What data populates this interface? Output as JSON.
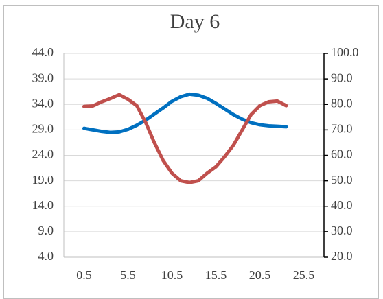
{
  "chart_data": {
    "type": "line",
    "title": "Day 6",
    "x": [
      0.5,
      1.5,
      2.5,
      3.5,
      4.5,
      5.5,
      6.5,
      7.5,
      8.5,
      9.5,
      10.5,
      11.5,
      12.5,
      13.5,
      14.5,
      15.5,
      16.5,
      17.5,
      18.5,
      19.5,
      20.5,
      21.5,
      22.5,
      23.5
    ],
    "series": [
      {
        "color": "#0070c0",
        "values": [
          29.3,
          29.0,
          28.7,
          28.5,
          28.6,
          29.1,
          29.9,
          30.9,
          32.1,
          33.3,
          34.6,
          35.5,
          36.0,
          35.8,
          35.2,
          34.2,
          33.1,
          32.0,
          31.1,
          30.4,
          30.0,
          29.8,
          29.7,
          29.6
        ]
      },
      {
        "color": "#c0504d",
        "axis": "y2",
        "values": [
          79.2,
          79.4,
          81.0,
          82.3,
          83.8,
          82.0,
          79.5,
          73.0,
          65.0,
          58.0,
          53.0,
          50.0,
          49.3,
          50.0,
          53.0,
          55.5,
          59.5,
          64.0,
          70.0,
          76.0,
          79.5,
          81.0,
          81.3,
          79.5
        ]
      }
    ],
    "xlim": [
      -1.8,
      27.8
    ],
    "xticks": [
      0.5,
      5.5,
      10.5,
      15.5,
      20.5,
      25.5
    ],
    "ylim": [
      4,
      44
    ],
    "yticks": [
      {
        "value": 4,
        "label": "4.0"
      },
      {
        "value": 9,
        "label": "9.0"
      },
      {
        "value": 14,
        "label": "14.0"
      },
      {
        "value": 19,
        "label": "19.0"
      },
      {
        "value": 24,
        "label": "24.0"
      },
      {
        "value": 29,
        "label": "29.0"
      },
      {
        "value": 34,
        "label": "34.0"
      },
      {
        "value": 39,
        "label": "39.0"
      },
      {
        "value": 44,
        "label": "44.0"
      }
    ],
    "y2lim": [
      20,
      100
    ],
    "y2ticks": [
      {
        "value": 20,
        "label": "20.0"
      },
      {
        "value": 30,
        "label": "30.0"
      },
      {
        "value": 40,
        "label": "40.0"
      },
      {
        "value": 50,
        "label": "50.0"
      },
      {
        "value": 60,
        "label": "60.0"
      },
      {
        "value": 70,
        "label": "70.0"
      },
      {
        "value": 80,
        "label": "80.0"
      },
      {
        "value": 90,
        "label": "90.0"
      },
      {
        "value": 100,
        "label": "100.0"
      }
    ],
    "grid": true
  }
}
